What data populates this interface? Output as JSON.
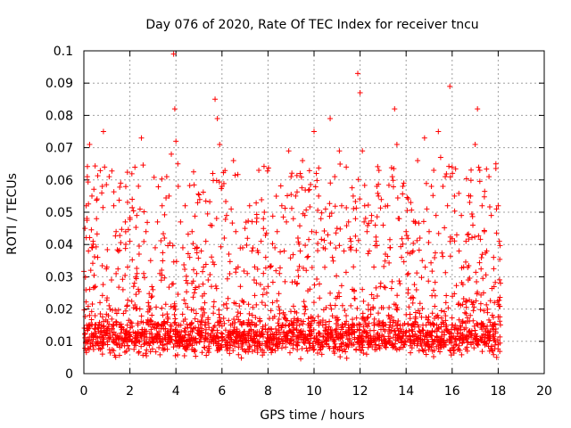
{
  "chart_data": {
    "type": "scatter",
    "title": "Day 076 of 2020, Rate Of TEC Index for receiver tncu",
    "xlabel": "GPS time / hours",
    "ylabel": "ROTI / TECUs",
    "xlim": [
      0,
      20
    ],
    "ylim": [
      0,
      0.1
    ],
    "x_ticks": [
      0,
      2,
      4,
      6,
      8,
      10,
      12,
      14,
      16,
      18,
      20
    ],
    "y_ticks": [
      0,
      0.01,
      0.02,
      0.03,
      0.04,
      0.05,
      0.06,
      0.07,
      0.08,
      0.09,
      0.1
    ],
    "x_tick_labels": [
      "0",
      "2",
      "4",
      "6",
      "8",
      "10",
      "12",
      "14",
      "16",
      "18",
      "20"
    ],
    "y_tick_labels": [
      "0",
      "0.01",
      "0.02",
      "0.03",
      "0.04",
      "0.05",
      "0.06",
      "0.07",
      "0.08",
      "0.09",
      "0.1"
    ],
    "grid": true,
    "marker": "+",
    "marker_color": "#ff0000",
    "points": [
      [
        0.05,
        0.045
      ],
      [
        0.1,
        0.052
      ],
      [
        0.15,
        0.061
      ],
      [
        0.2,
        0.038
      ],
      [
        0.25,
        0.071
      ],
      [
        0.3,
        0.032
      ],
      [
        0.35,
        0.055
      ],
      [
        0.4,
        0.041
      ],
      [
        0.5,
        0.027
      ],
      [
        0.55,
        0.048
      ],
      [
        0.6,
        0.036
      ],
      [
        0.7,
        0.022
      ],
      [
        0.8,
        0.058
      ],
      [
        0.85,
        0.075
      ],
      [
        0.9,
        0.064
      ],
      [
        1.0,
        0.033
      ],
      [
        1.1,
        0.061
      ],
      [
        1.2,
        0.029
      ],
      [
        1.3,
        0.052
      ],
      [
        1.4,
        0.044
      ],
      [
        1.5,
        0.038
      ],
      [
        1.6,
        0.059
      ],
      [
        1.7,
        0.026
      ],
      [
        1.8,
        0.047
      ],
      [
        1.9,
        0.033
      ],
      [
        2.0,
        0.041
      ],
      [
        2.1,
        0.054
      ],
      [
        2.2,
        0.028
      ],
      [
        2.3,
        0.049
      ],
      [
        2.4,
        0.037
      ],
      [
        2.5,
        0.073
      ],
      [
        2.6,
        0.031
      ],
      [
        2.7,
        0.044
      ],
      [
        2.8,
        0.022
      ],
      [
        2.9,
        0.035
      ],
      [
        3.0,
        0.026
      ],
      [
        3.1,
        0.039
      ],
      [
        3.2,
        0.047
      ],
      [
        3.3,
        0.031
      ],
      [
        3.4,
        0.052
      ],
      [
        3.5,
        0.042
      ],
      [
        3.6,
        0.061
      ],
      [
        3.7,
        0.055
      ],
      [
        3.8,
        0.068
      ],
      [
        3.9,
        0.099
      ],
      [
        3.95,
        0.082
      ],
      [
        4.0,
        0.072
      ],
      [
        4.1,
        0.058
      ],
      [
        4.2,
        0.047
      ],
      [
        4.3,
        0.039
      ],
      [
        4.4,
        0.052
      ],
      [
        4.5,
        0.028
      ],
      [
        4.6,
        0.036
      ],
      [
        4.7,
        0.044
      ],
      [
        4.8,
        0.025
      ],
      [
        4.9,
        0.031
      ],
      [
        5.0,
        0.027
      ],
      [
        5.1,
        0.038
      ],
      [
        5.2,
        0.033
      ],
      [
        5.3,
        0.041
      ],
      [
        5.4,
        0.029
      ],
      [
        5.5,
        0.046
      ],
      [
        5.6,
        0.062
      ],
      [
        5.7,
        0.085
      ],
      [
        5.8,
        0.079
      ],
      [
        5.9,
        0.071
      ],
      [
        6.0,
        0.058
      ],
      [
        6.1,
        0.042
      ],
      [
        6.2,
        0.049
      ],
      [
        6.3,
        0.037
      ],
      [
        6.4,
        0.051
      ],
      [
        6.5,
        0.066
      ],
      [
        6.6,
        0.044
      ],
      [
        6.7,
        0.033
      ],
      [
        6.8,
        0.027
      ],
      [
        6.9,
        0.039
      ],
      [
        7.0,
        0.045
      ],
      [
        7.1,
        0.031
      ],
      [
        7.2,
        0.052
      ],
      [
        7.3,
        0.038
      ],
      [
        7.4,
        0.029
      ],
      [
        7.5,
        0.047
      ],
      [
        7.6,
        0.063
      ],
      [
        7.7,
        0.041
      ],
      [
        7.8,
        0.048
      ],
      [
        7.9,
        0.036
      ],
      [
        8.0,
        0.027
      ],
      [
        8.1,
        0.033
      ],
      [
        8.2,
        0.022
      ],
      [
        8.3,
        0.039
      ],
      [
        8.4,
        0.044
      ],
      [
        8.5,
        0.031
      ],
      [
        8.6,
        0.052
      ],
      [
        8.7,
        0.038
      ],
      [
        8.8,
        0.047
      ],
      [
        8.9,
        0.069
      ],
      [
        9.0,
        0.061
      ],
      [
        9.1,
        0.048
      ],
      [
        9.2,
        0.055
      ],
      [
        9.3,
        0.042
      ],
      [
        9.4,
        0.038
      ],
      [
        9.5,
        0.066
      ],
      [
        9.6,
        0.049
      ],
      [
        9.7,
        0.036
      ],
      [
        9.8,
        0.057
      ],
      [
        9.9,
        0.044
      ],
      [
        10.0,
        0.075
      ],
      [
        10.1,
        0.062
      ],
      [
        10.2,
        0.055
      ],
      [
        10.3,
        0.048
      ],
      [
        10.4,
        0.039
      ],
      [
        10.5,
        0.051
      ],
      [
        10.6,
        0.043
      ],
      [
        10.7,
        0.079
      ],
      [
        10.8,
        0.036
      ],
      [
        10.9,
        0.061
      ],
      [
        11.0,
        0.045
      ],
      [
        11.1,
        0.069
      ],
      [
        11.2,
        0.052
      ],
      [
        11.3,
        0.038
      ],
      [
        11.4,
        0.064
      ],
      [
        11.5,
        0.047
      ],
      [
        11.6,
        0.041
      ],
      [
        11.7,
        0.055
      ],
      [
        11.8,
        0.048
      ],
      [
        11.9,
        0.093
      ],
      [
        12.0,
        0.087
      ],
      [
        12.1,
        0.069
      ],
      [
        12.2,
        0.052
      ],
      [
        12.3,
        0.044
      ],
      [
        12.4,
        0.038
      ],
      [
        12.5,
        0.049
      ],
      [
        12.6,
        0.033
      ],
      [
        12.7,
        0.041
      ],
      [
        12.8,
        0.055
      ],
      [
        12.9,
        0.028
      ],
      [
        13.0,
        0.046
      ],
      [
        13.1,
        0.037
      ],
      [
        13.2,
        0.052
      ],
      [
        13.3,
        0.039
      ],
      [
        13.4,
        0.061
      ],
      [
        13.5,
        0.082
      ],
      [
        13.6,
        0.071
      ],
      [
        13.7,
        0.048
      ],
      [
        13.8,
        0.036
      ],
      [
        13.9,
        0.059
      ],
      [
        14.0,
        0.044
      ],
      [
        14.1,
        0.031
      ],
      [
        14.2,
        0.053
      ],
      [
        14.3,
        0.038
      ],
      [
        14.4,
        0.047
      ],
      [
        14.5,
        0.066
      ],
      [
        14.6,
        0.042
      ],
      [
        14.7,
        0.035
      ],
      [
        14.8,
        0.073
      ],
      [
        14.9,
        0.051
      ],
      [
        15.0,
        0.044
      ],
      [
        15.1,
        0.058
      ],
      [
        15.2,
        0.063
      ],
      [
        15.3,
        0.049
      ],
      [
        15.4,
        0.075
      ],
      [
        15.5,
        0.067
      ],
      [
        15.6,
        0.058
      ],
      [
        15.7,
        0.061
      ],
      [
        15.8,
        0.052
      ],
      [
        15.9,
        0.089
      ],
      [
        16.0,
        0.064
      ],
      [
        16.1,
        0.055
      ],
      [
        16.2,
        0.043
      ],
      [
        16.3,
        0.038
      ],
      [
        16.4,
        0.049
      ],
      [
        16.5,
        0.033
      ],
      [
        16.6,
        0.041
      ],
      [
        16.7,
        0.029
      ],
      [
        16.8,
        0.055
      ],
      [
        16.9,
        0.046
      ],
      [
        17.0,
        0.071
      ],
      [
        17.1,
        0.082
      ],
      [
        17.2,
        0.063
      ],
      [
        17.3,
        0.052
      ],
      [
        17.4,
        0.044
      ],
      [
        17.5,
        0.038
      ],
      [
        17.6,
        0.061
      ],
      [
        17.7,
        0.049
      ],
      [
        17.8,
        0.036
      ],
      [
        17.9,
        0.065
      ],
      [
        18.0,
        0.052
      ],
      [
        18.05,
        0.041
      ],
      [
        18.1,
        0.028
      ]
    ],
    "dense_band": {
      "x_range": [
        0,
        18.1
      ],
      "y_center": 0.011,
      "y_spread": 0.007,
      "count": 1400
    }
  }
}
